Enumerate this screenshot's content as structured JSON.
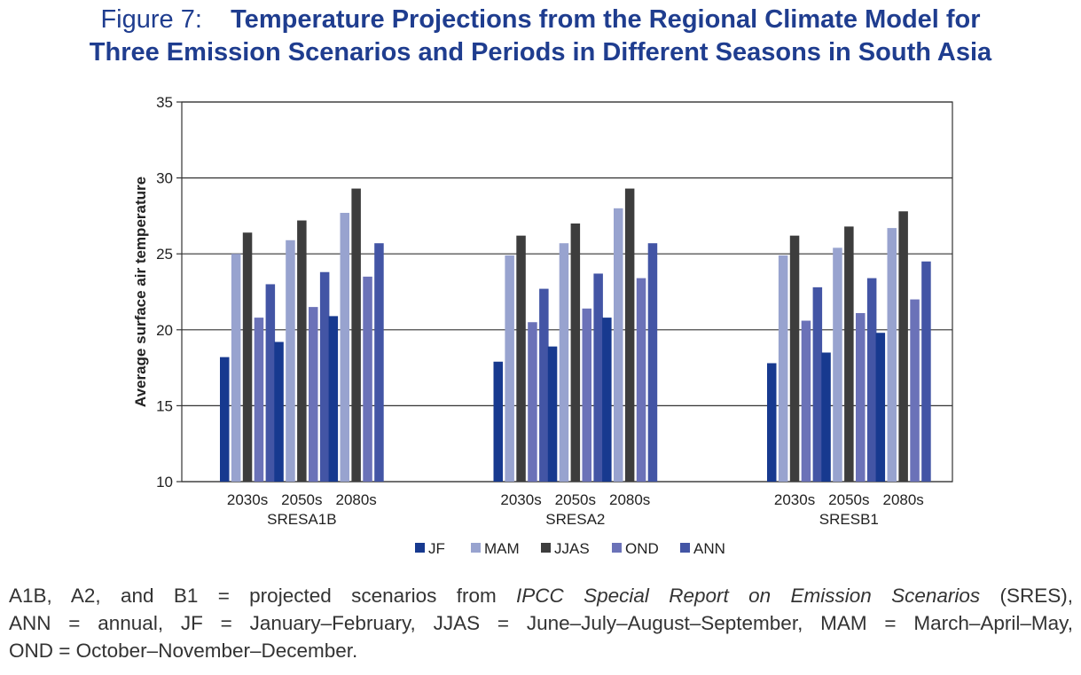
{
  "figure": {
    "label": "Figure 7:",
    "title_line1": "Temperature Projections from the Regional Climate Model for",
    "title_line2": "Three Emission Scenarios and Periods in Different Seasons in South Asia"
  },
  "chart_data": {
    "type": "bar",
    "ylabel": "Average surface air temperature",
    "ylim": [
      10,
      35
    ],
    "yticks": [
      10,
      15,
      20,
      25,
      30,
      35
    ],
    "grid": "horizontal",
    "legend_position": "bottom",
    "groups": [
      {
        "name": "SRESA1B",
        "periods": [
          "2030s",
          "2050s",
          "2080s"
        ]
      },
      {
        "name": "SRESA2",
        "periods": [
          "2030s",
          "2050s",
          "2080s"
        ]
      },
      {
        "name": "SRESB1",
        "periods": [
          "2030s",
          "2050s",
          "2080s"
        ]
      }
    ],
    "series": [
      {
        "name": "JF",
        "color": "#17398f",
        "values": [
          18.2,
          19.2,
          20.9,
          17.9,
          18.9,
          20.8,
          17.8,
          18.5,
          19.8
        ]
      },
      {
        "name": "MAM",
        "color": "#98a3cf",
        "values": [
          25.0,
          25.9,
          27.7,
          24.9,
          25.7,
          28.0,
          24.9,
          25.4,
          26.7
        ]
      },
      {
        "name": "JJAS",
        "color": "#3d3d3d",
        "values": [
          26.4,
          27.2,
          29.3,
          26.2,
          27.0,
          29.3,
          26.2,
          26.8,
          27.8
        ]
      },
      {
        "name": "OND",
        "color": "#6b72b8",
        "values": [
          20.8,
          21.5,
          23.5,
          20.5,
          21.4,
          23.4,
          20.6,
          21.1,
          22.0
        ]
      },
      {
        "name": "ANN",
        "color": "#4355a5",
        "values": [
          23.0,
          23.8,
          25.7,
          22.7,
          23.7,
          25.7,
          22.8,
          23.4,
          24.5
        ]
      }
    ]
  },
  "notes": {
    "line1_pre": "A1B, A2, and B1 = projected scenarios from ",
    "line1_italic": "IPCC Special Report on Emission Scenarios",
    "line1_post": " (SRES),",
    "line2": "ANN = annual, JF = January–February, JJAS = June–July–August–September, MAM = March–April–May,",
    "line3": "OND = October–November–December."
  }
}
